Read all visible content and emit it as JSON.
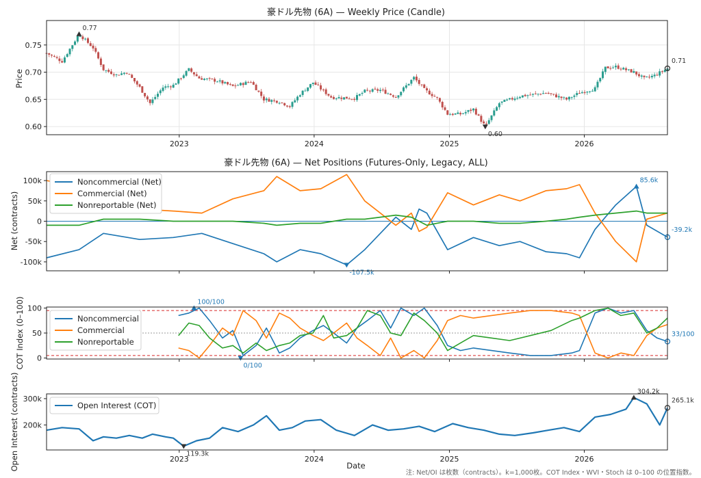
{
  "footnote": "注: Net/OI は枚数（contracts）。k=1,000枚。COT Index・WVI・Stoch は 0–100 の位置指数。",
  "colors": {
    "noncommercial": "#1f77b4",
    "commercial": "#ff7f0e",
    "nonreportable": "#2ca02c",
    "up_candle": "#2a9d8f",
    "down_candle": "#c0504d",
    "marker": "#333333"
  },
  "chart_data": [
    {
      "type": "candlestick",
      "title": "豪ドル先物 (6A) — Weekly Price (Candle)",
      "xlabel": "",
      "ylabel": "Price",
      "xlim": [
        "2022-01-07",
        "2026-08-14"
      ],
      "ylim": [
        0.585,
        0.795
      ],
      "yticks": [
        "0.60",
        "0.65",
        "0.70",
        "0.75"
      ],
      "xticks": [
        "2023",
        "2024",
        "2025",
        "2026"
      ],
      "grid": true,
      "annotations": [
        {
          "label": "0.77",
          "date": "2022-04-05",
          "value": 0.77,
          "marker": "max"
        },
        {
          "label": "0.60",
          "date": "2025-04-08",
          "value": 0.6,
          "marker": "min"
        },
        {
          "label": "0.71",
          "date": "2026-08-14",
          "value": 0.707,
          "marker": "last"
        }
      ],
      "close_path": {
        "dates": [
          "2022-01-07",
          "2022-02-18",
          "2022-04-05",
          "2022-05-13",
          "2022-06-10",
          "2022-07-15",
          "2022-08-12",
          "2022-09-16",
          "2022-10-14",
          "2022-11-18",
          "2022-12-16",
          "2023-01-27",
          "2023-02-24",
          "2023-04-14",
          "2023-05-26",
          "2023-07-14",
          "2023-08-18",
          "2023-09-29",
          "2023-10-27",
          "2023-11-24",
          "2023-12-29",
          "2024-02-16",
          "2024-04-19",
          "2024-05-17",
          "2024-06-28",
          "2024-08-09",
          "2024-09-27",
          "2024-10-25",
          "2024-11-29",
          "2024-12-27",
          "2025-01-31",
          "2025-03-07",
          "2025-04-08",
          "2025-05-16",
          "2025-07-11",
          "2025-09-19",
          "2025-11-14",
          "2025-12-19",
          "2026-01-30",
          "2026-02-27",
          "2026-03-27",
          "2026-05-15",
          "2026-06-12",
          "2026-07-10",
          "2026-08-14"
        ],
        "values": [
          0.735,
          0.72,
          0.77,
          0.745,
          0.705,
          0.695,
          0.7,
          0.672,
          0.643,
          0.672,
          0.676,
          0.705,
          0.689,
          0.684,
          0.674,
          0.683,
          0.65,
          0.646,
          0.637,
          0.66,
          0.681,
          0.654,
          0.652,
          0.665,
          0.667,
          0.655,
          0.69,
          0.668,
          0.652,
          0.623,
          0.623,
          0.632,
          0.6,
          0.643,
          0.656,
          0.662,
          0.65,
          0.662,
          0.67,
          0.708,
          0.71,
          0.7,
          0.688,
          0.694,
          0.707
        ]
      }
    },
    {
      "type": "line",
      "title": "豪ドル先物 (6A) — Net Positions (Futures-Only, Legacy, ALL)",
      "xlabel": "",
      "ylabel": "Net (contracts)",
      "ylim": [
        -122000,
        122000
      ],
      "yticks": [
        "-100k",
        "-50k",
        "0",
        "50k",
        "100k"
      ],
      "legend": "upper-left",
      "grid": false,
      "annotations": [
        {
          "label": "85.6k",
          "date": "2026-05-22",
          "value": 85600,
          "marker": "max"
        },
        {
          "label": "-107.5k",
          "date": "2024-03-29",
          "value": -107500,
          "marker": "min"
        },
        {
          "label": "-39.2k",
          "date": "2026-08-14",
          "value": -39200,
          "marker": "last"
        }
      ],
      "x": [
        "2022-01-07",
        "2022-04-05",
        "2022-06-10",
        "2022-09-16",
        "2022-12-16",
        "2023-03-03",
        "2023-05-26",
        "2023-08-18",
        "2023-09-22",
        "2023-11-24",
        "2024-01-19",
        "2024-03-29",
        "2024-05-17",
        "2024-06-28",
        "2024-08-09",
        "2024-09-20",
        "2024-10-11",
        "2024-11-01",
        "2024-12-27",
        "2025-03-07",
        "2025-05-16",
        "2025-07-11",
        "2025-09-19",
        "2025-11-14",
        "2025-12-19",
        "2026-01-30",
        "2026-03-27",
        "2026-05-22",
        "2026-06-19",
        "2026-08-14"
      ],
      "series": [
        {
          "name": "Noncommercial (Net)",
          "values": [
            -90000,
            -70000,
            -30000,
            -45000,
            -40000,
            -30000,
            -55000,
            -80000,
            -100000,
            -70000,
            -80000,
            -107500,
            -70000,
            -30000,
            10000,
            -20000,
            30000,
            20000,
            -70000,
            -40000,
            -60000,
            -50000,
            -75000,
            -80000,
            -90000,
            -20000,
            40000,
            85600,
            -10000,
            -39200
          ]
        },
        {
          "name": "Commercial (Net)",
          "values": [
            100000,
            85000,
            50000,
            30000,
            25000,
            20000,
            55000,
            75000,
            110000,
            75000,
            80000,
            115000,
            50000,
            20000,
            -10000,
            20000,
            -25000,
            -15000,
            70000,
            40000,
            65000,
            50000,
            75000,
            80000,
            90000,
            20000,
            -50000,
            -100000,
            5000,
            20000
          ]
        },
        {
          "name": "Nonreportable (Net)",
          "values": [
            -10000,
            -10000,
            5000,
            5000,
            0,
            0,
            0,
            -5000,
            -10000,
            -5000,
            -5000,
            5000,
            5000,
            10000,
            15000,
            10000,
            0,
            -10000,
            0,
            0,
            -5000,
            -5000,
            0,
            5000,
            10000,
            15000,
            20000,
            25000,
            20000,
            20000
          ]
        }
      ]
    },
    {
      "type": "line",
      "title": "",
      "xlabel": "",
      "ylabel": "COT Index (0–100)",
      "ylim": [
        -2,
        102
      ],
      "yticks": [
        "0",
        "50",
        "100"
      ],
      "reference_lines": [
        95,
        50,
        5
      ],
      "legend": "upper-left",
      "grid": false,
      "annotations": [
        {
          "label": "100/100",
          "date": "2023-02-10",
          "value": 100,
          "marker": "max"
        },
        {
          "label": "0/100",
          "date": "2023-06-16",
          "value": 0,
          "marker": "min"
        },
        {
          "label": "33/100",
          "date": "2026-08-14",
          "value": 33,
          "marker": "last"
        }
      ],
      "x": [
        "2022-12-30",
        "2023-01-27",
        "2023-02-24",
        "2023-03-24",
        "2023-04-28",
        "2023-05-26",
        "2023-06-23",
        "2023-07-28",
        "2023-08-25",
        "2023-09-29",
        "2023-10-27",
        "2023-11-24",
        "2023-12-29",
        "2024-01-26",
        "2024-02-23",
        "2024-03-29",
        "2024-04-26",
        "2024-05-24",
        "2024-06-28",
        "2024-07-26",
        "2024-08-23",
        "2024-09-27",
        "2024-10-25",
        "2024-11-29",
        "2024-12-27",
        "2025-01-31",
        "2025-03-07",
        "2025-04-25",
        "2025-06-13",
        "2025-08-08",
        "2025-10-03",
        "2025-11-28",
        "2025-12-19",
        "2026-01-30",
        "2026-03-06",
        "2026-04-10",
        "2026-05-15",
        "2026-06-19",
        "2026-07-17",
        "2026-08-14"
      ],
      "series": [
        {
          "name": "Noncommercial",
          "values": [
            85,
            90,
            100,
            75,
            40,
            55,
            5,
            25,
            60,
            10,
            20,
            40,
            55,
            65,
            50,
            30,
            60,
            75,
            95,
            60,
            100,
            85,
            100,
            65,
            25,
            15,
            20,
            15,
            10,
            5,
            5,
            10,
            15,
            90,
            100,
            90,
            95,
            55,
            40,
            33
          ]
        },
        {
          "name": "Commercial",
          "values": [
            20,
            15,
            0,
            25,
            60,
            45,
            95,
            75,
            40,
            90,
            80,
            60,
            45,
            35,
            50,
            70,
            40,
            25,
            5,
            40,
            0,
            15,
            0,
            35,
            75,
            85,
            80,
            85,
            90,
            95,
            95,
            90,
            85,
            10,
            0,
            10,
            5,
            45,
            60,
            67
          ]
        },
        {
          "name": "Nonreportable",
          "values": [
            45,
            70,
            65,
            40,
            20,
            25,
            10,
            30,
            15,
            25,
            30,
            45,
            50,
            85,
            40,
            45,
            60,
            95,
            85,
            50,
            45,
            90,
            75,
            50,
            15,
            30,
            45,
            40,
            35,
            45,
            55,
            75,
            80,
            95,
            100,
            85,
            90,
            50,
            60,
            80
          ]
        }
      ]
    },
    {
      "type": "line",
      "title": "",
      "xlabel": "Date",
      "ylabel": "Open Interest (contracts)",
      "ylim": [
        105000,
        318000
      ],
      "yticks": [
        "200k",
        "300k"
      ],
      "legend": "upper-left",
      "grid": false,
      "annotations": [
        {
          "label": "304.2k",
          "date": "2026-05-15",
          "value": 304200,
          "marker": "max"
        },
        {
          "label": "119.3k",
          "date": "2023-01-13",
          "value": 119300,
          "marker": "min"
        },
        {
          "label": "265.1k",
          "date": "2026-08-14",
          "value": 265100,
          "marker": "last"
        }
      ],
      "x": [
        "2022-01-07",
        "2022-02-18",
        "2022-04-05",
        "2022-05-13",
        "2022-06-10",
        "2022-07-15",
        "2022-08-19",
        "2022-09-23",
        "2022-10-21",
        "2022-11-25",
        "2022-12-16",
        "2023-01-13",
        "2023-02-17",
        "2023-03-24",
        "2023-04-28",
        "2023-06-09",
        "2023-07-21",
        "2023-08-25",
        "2023-09-29",
        "2023-11-03",
        "2023-12-08",
        "2024-01-19",
        "2024-03-01",
        "2024-04-19",
        "2024-06-07",
        "2024-07-19",
        "2024-08-30",
        "2024-10-11",
        "2024-11-22",
        "2025-01-10",
        "2025-02-21",
        "2025-04-04",
        "2025-05-16",
        "2025-06-27",
        "2025-08-15",
        "2025-09-26",
        "2025-11-07",
        "2025-12-19",
        "2026-01-30",
        "2026-03-13",
        "2026-04-24",
        "2026-05-15",
        "2026-06-19",
        "2026-07-24",
        "2026-08-14"
      ],
      "series": [
        {
          "name": "Open Interest (COT)",
          "values": [
            180000,
            190000,
            185000,
            140000,
            155000,
            150000,
            160000,
            150000,
            165000,
            155000,
            150000,
            119300,
            140000,
            150000,
            190000,
            175000,
            200000,
            235000,
            180000,
            190000,
            215000,
            220000,
            180000,
            160000,
            200000,
            180000,
            185000,
            195000,
            175000,
            205000,
            190000,
            180000,
            165000,
            160000,
            170000,
            180000,
            190000,
            175000,
            230000,
            240000,
            260000,
            304200,
            280000,
            200000,
            265100
          ]
        }
      ]
    }
  ]
}
